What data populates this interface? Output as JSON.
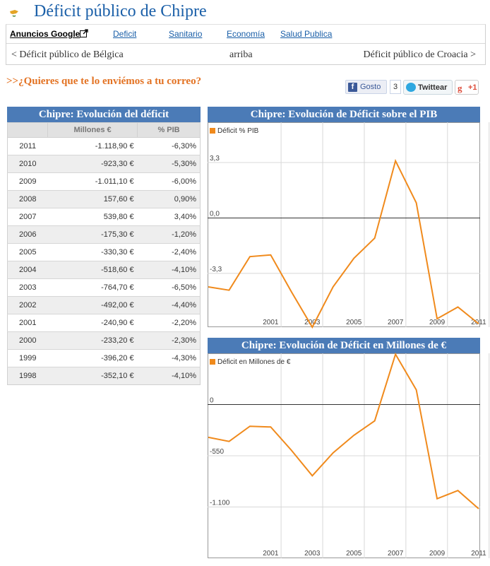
{
  "page_title": "Déficit público de Chipre",
  "ads": {
    "label": "Anuncios Google",
    "links": [
      "Deficit",
      "Sanitario",
      "Economía",
      "Salud Publica"
    ]
  },
  "nav": {
    "prev": "< Déficit público de Bélgica",
    "up": "arriba",
    "next": "Déficit público de Croacia >"
  },
  "subscribe": ">>¿Quieres que te lo enviémos a tu correo?",
  "social": {
    "facebook_label": "Gosto",
    "facebook_count": "3",
    "twitter_label": "Twittear",
    "gplus_label": "+1"
  },
  "colors": {
    "header_bg": "#4b7bb7",
    "series": "#f08a1c",
    "title": "#1a5fa8",
    "subscribe": "#e37222"
  },
  "table": {
    "title": "Chipre: Evolución del déficit",
    "headers": [
      "",
      "Millones €",
      "% PIB"
    ],
    "rows": [
      [
        "2011",
        "-1.118,90 €",
        "-6,30%"
      ],
      [
        "2010",
        "-923,30 €",
        "-5,30%"
      ],
      [
        "2009",
        "-1.011,10 €",
        "-6,00%"
      ],
      [
        "2008",
        "157,60 €",
        "0,90%"
      ],
      [
        "2007",
        "539,80 €",
        "3,40%"
      ],
      [
        "2006",
        "-175,30 €",
        "-1,20%"
      ],
      [
        "2005",
        "-330,30 €",
        "-2,40%"
      ],
      [
        "2004",
        "-518,60 €",
        "-4,10%"
      ],
      [
        "2003",
        "-764,70 €",
        "-6,50%"
      ],
      [
        "2002",
        "-492,00 €",
        "-4,40%"
      ],
      [
        "2001",
        "-240,90 €",
        "-2,20%"
      ],
      [
        "2000",
        "-233,20 €",
        "-2,30%"
      ],
      [
        "1999",
        "-396,20 €",
        "-4,30%"
      ],
      [
        "1998",
        "-352,10 €",
        "-4,10%"
      ]
    ]
  },
  "chart_data": [
    {
      "type": "line",
      "title": "Chipre: Evolución de Déficit sobre el PIB",
      "legend": "top-left",
      "series": [
        {
          "name": "Déficit % PIB",
          "x": [
            1998,
            1999,
            2000,
            2001,
            2002,
            2003,
            2004,
            2005,
            2006,
            2007,
            2008,
            2009,
            2010,
            2011
          ],
          "values": [
            -4.1,
            -4.3,
            -2.3,
            -2.2,
            -4.4,
            -6.5,
            -4.1,
            -2.4,
            -1.2,
            3.4,
            0.9,
            -6.0,
            -5.3,
            -6.3
          ]
        }
      ],
      "yticks": [
        3.3,
        0.0,
        -3.3
      ],
      "ytick_labels": [
        "3,3",
        "0,0",
        "-3,3"
      ],
      "xtick_labels": [
        "2001",
        "2003",
        "2005",
        "2007",
        "2009",
        "2011"
      ],
      "ylim": [
        -6.5,
        5.7
      ],
      "grid": true
    },
    {
      "type": "line",
      "title": "Chipre: Evolución de Déficit en Millones de €",
      "legend": "top-left",
      "series": [
        {
          "name": "Déficit en Millones de €",
          "x": [
            1998,
            1999,
            2000,
            2001,
            2002,
            2003,
            2004,
            2005,
            2006,
            2007,
            2008,
            2009,
            2010,
            2011
          ],
          "values": [
            -352.1,
            -396.2,
            -233.2,
            -240.9,
            -492.0,
            -764.7,
            -518.6,
            -330.3,
            -175.3,
            539.8,
            157.6,
            -1011.1,
            -923.3,
            -1118.9
          ]
        }
      ],
      "yticks": [
        0,
        -550,
        -1100
      ],
      "ytick_labels": [
        "0",
        "-550",
        "-1.100"
      ],
      "xtick_labels": [
        "2001",
        "2003",
        "2005",
        "2007",
        "2009",
        "2011"
      ],
      "ylim": [
        -1650,
        550
      ],
      "grid": true
    }
  ]
}
